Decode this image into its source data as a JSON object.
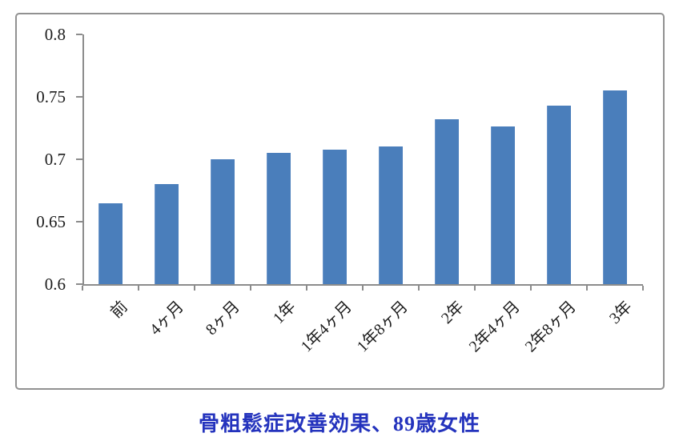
{
  "title": {
    "text": "骨粗鬆症改善効果、89歳女性",
    "color": "#2433bd"
  },
  "chart_data": {
    "type": "bar",
    "categories": [
      "前",
      "4ヶ月",
      "8ヶ月",
      "1年",
      "1年4ヶ月",
      "1年8ヶ月",
      "2年",
      "2年4ヶ月",
      "2年8ヶ月",
      "3年"
    ],
    "values": [
      0.665,
      0.68,
      0.7,
      0.705,
      0.708,
      0.71,
      0.732,
      0.726,
      0.743,
      0.755
    ],
    "title": "骨粗鬆症改善効果、89歳女性",
    "xlabel": "",
    "ylabel": "",
    "ylim": [
      0.6,
      0.8
    ],
    "yticks": [
      0.6,
      0.65,
      0.7,
      0.75,
      0.8
    ],
    "ytick_labels": [
      "0.6",
      "0.65",
      "0.7",
      "0.75",
      "0.8"
    ],
    "x_label_rotation": -45,
    "grid": false,
    "legend": false,
    "bar_color": "#4a7ebb",
    "axis_color": "#8c8c8c",
    "text_color": "#1c1c1c",
    "frame_border_color": "#919191",
    "background_color": "#ffffff"
  }
}
